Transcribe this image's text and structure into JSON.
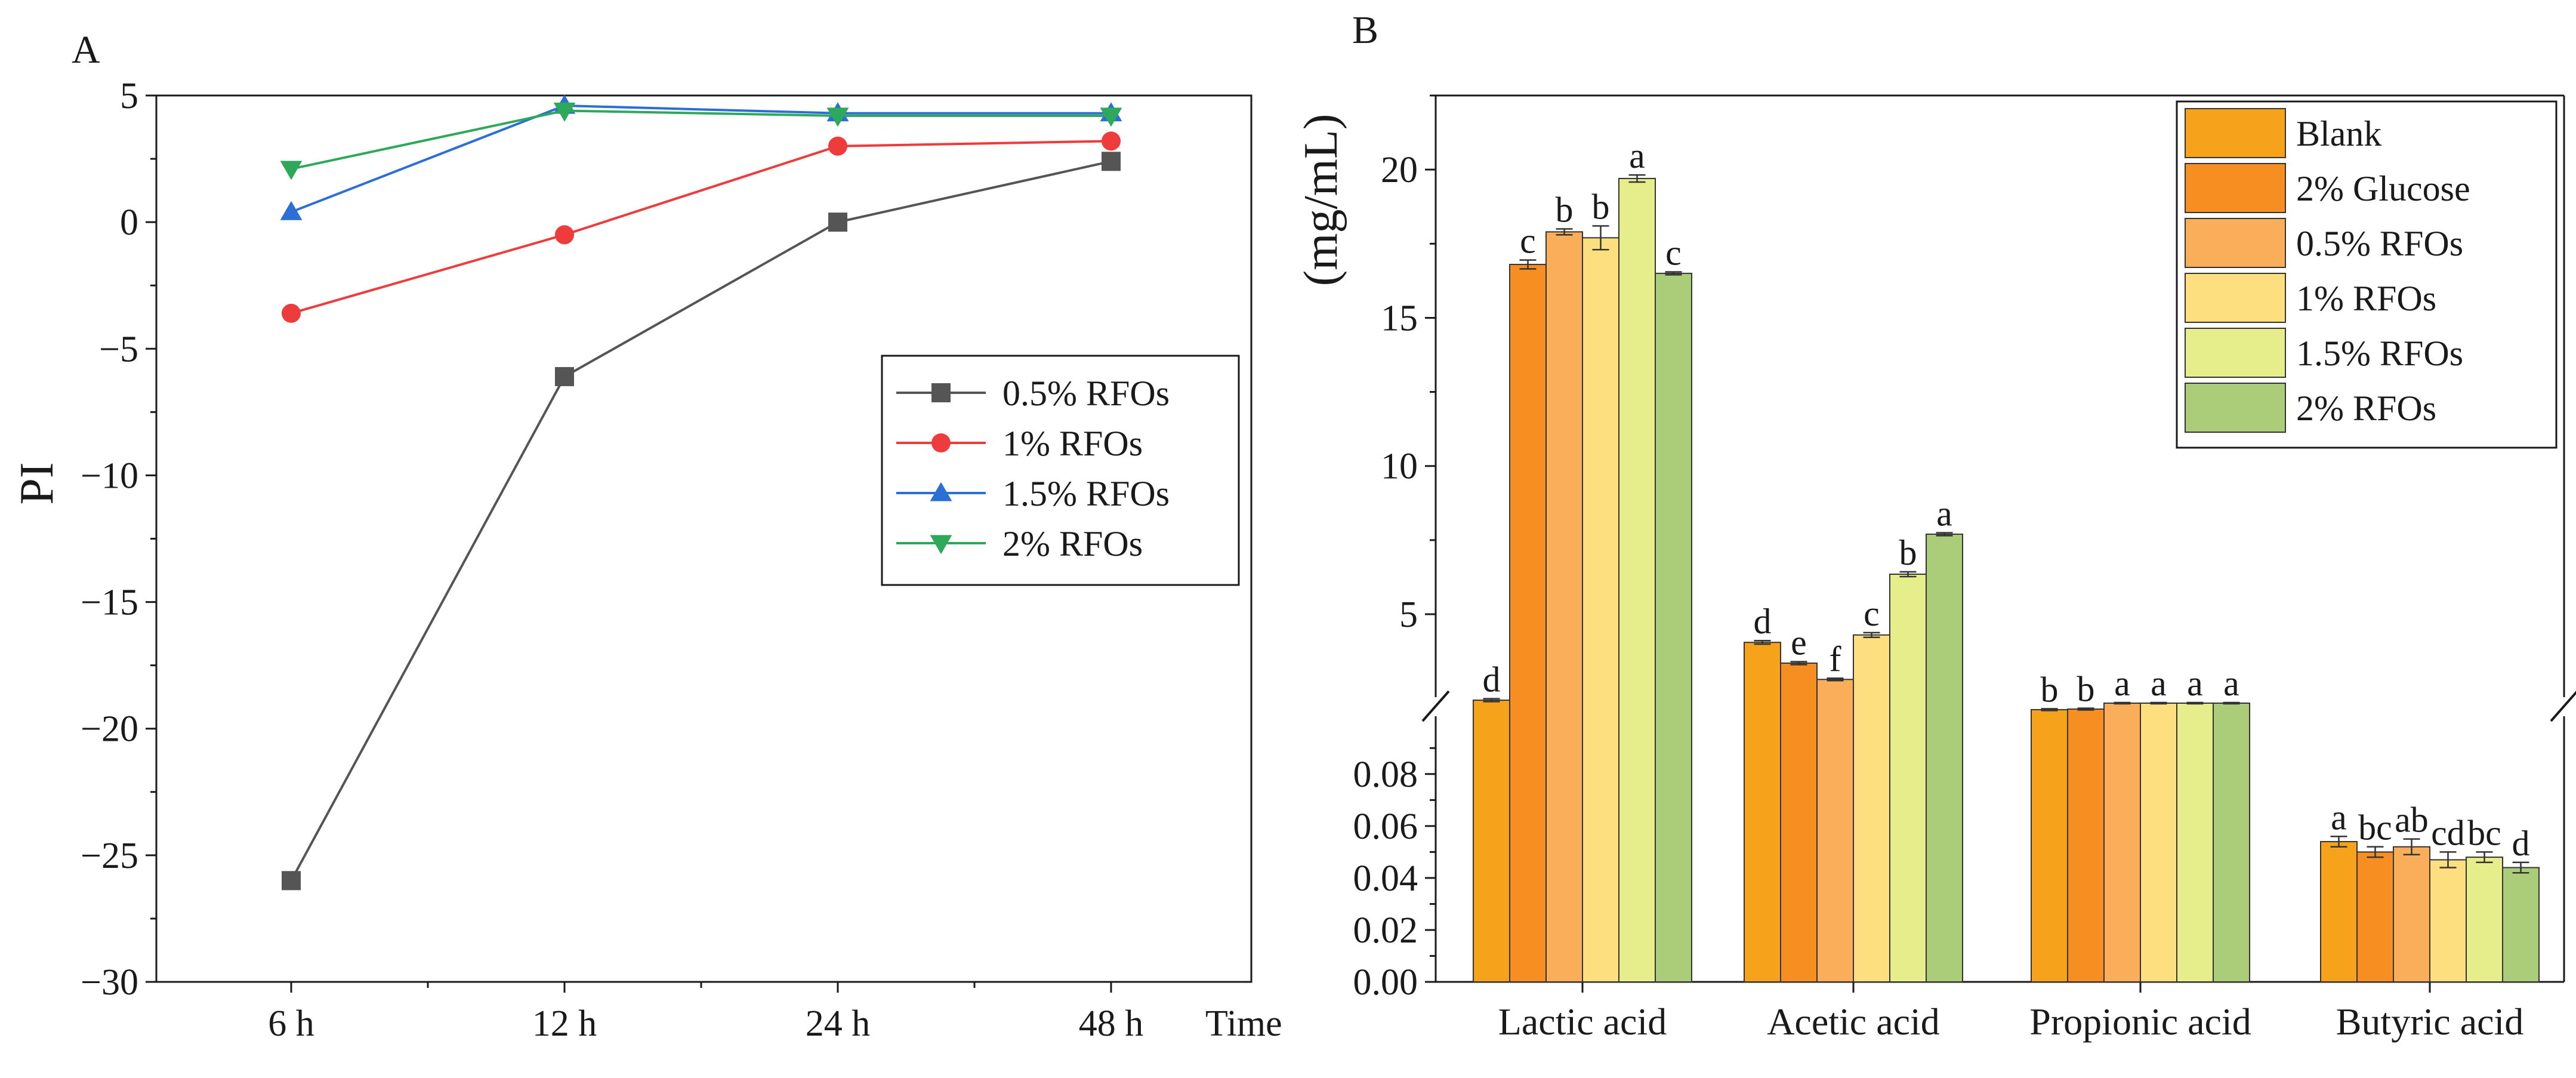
{
  "chart_data": [
    {
      "panel": "A",
      "type": "line",
      "x": [
        "6 h",
        "12 h",
        "24 h",
        "48 h"
      ],
      "xlabel": "Time",
      "ylabel": "PI",
      "ylim": [
        -30,
        5
      ],
      "yticks": [
        5,
        0,
        -5,
        -10,
        -15,
        -20,
        -25,
        -30
      ],
      "ytick_labels": [
        "5",
        "0",
        "−5",
        "−10",
        "−15",
        "−20",
        "−25",
        "−30"
      ],
      "legend_position": "center-right",
      "series": [
        {
          "name": "0.5% RFOs",
          "color": "#555555",
          "marker": "square",
          "values": [
            -26.0,
            -6.1,
            0.0,
            2.4
          ]
        },
        {
          "name": "1% RFOs",
          "color": "#ee3b3b",
          "marker": "circle",
          "values": [
            -3.6,
            -0.5,
            3.0,
            3.2
          ]
        },
        {
          "name": "1.5% RFOs",
          "color": "#2b6fd6",
          "marker": "triangle-up",
          "values": [
            0.4,
            4.6,
            4.3,
            4.3
          ]
        },
        {
          "name": "2% RFOs",
          "color": "#2ea85a",
          "marker": "triangle-down",
          "values": [
            2.1,
            4.4,
            4.2,
            4.2
          ]
        }
      ]
    },
    {
      "panel": "B",
      "type": "bar",
      "categories": [
        "Lactic acid",
        "Acetic acid",
        "Propionic acid",
        "Butyric acid"
      ],
      "ylabel": "(mg/mL)",
      "broken_axis": true,
      "upper_yticks": [
        5,
        10,
        15,
        20
      ],
      "lower_yticks": [
        "0.00",
        "0.02",
        "0.04",
        "0.06",
        "0.08"
      ],
      "legend_position": "top-right",
      "series": [
        {
          "name": "Blank",
          "color": "#f7a21b",
          "values": [
            2.1,
            4.05,
            1.78,
            0.054
          ],
          "errors": [
            0.05,
            0.06,
            0.03,
            0.002
          ],
          "letters": [
            "d",
            "d",
            "b",
            "a"
          ]
        },
        {
          "name": "2% Glucose",
          "color": "#f68e22",
          "values": [
            16.8,
            3.35,
            1.8,
            0.05
          ],
          "errors": [
            0.15,
            0.05,
            0.03,
            0.002
          ],
          "letters": [
            "c",
            "e",
            "b",
            "bc"
          ]
        },
        {
          "name": "0.5% RFOs",
          "color": "#fbae5a",
          "values": [
            17.9,
            2.8,
            2.0,
            0.052
          ],
          "errors": [
            0.1,
            0.04,
            0.02,
            0.003
          ],
          "letters": [
            "b",
            "f",
            "a",
            "ab"
          ]
        },
        {
          "name": "1% RFOs",
          "color": "#fddf80",
          "values": [
            17.7,
            4.3,
            2.0,
            0.047
          ],
          "errors": [
            0.4,
            0.08,
            0.02,
            0.003
          ],
          "letters": [
            "b",
            "c",
            "a",
            "cd"
          ]
        },
        {
          "name": "1.5% RFOs",
          "color": "#e6ee8c",
          "values": [
            19.7,
            6.35,
            2.0,
            0.048
          ],
          "errors": [
            0.12,
            0.08,
            0.02,
            0.002
          ],
          "letters": [
            "a",
            "b",
            "a",
            "bc"
          ]
        },
        {
          "name": "2% RFOs",
          "color": "#abcc79",
          "values": [
            16.5,
            7.7,
            2.0,
            0.044
          ],
          "errors": [
            0.05,
            0.05,
            0.02,
            0.002
          ],
          "letters": [
            "c",
            "a",
            "a",
            "d"
          ]
        }
      ]
    }
  ]
}
